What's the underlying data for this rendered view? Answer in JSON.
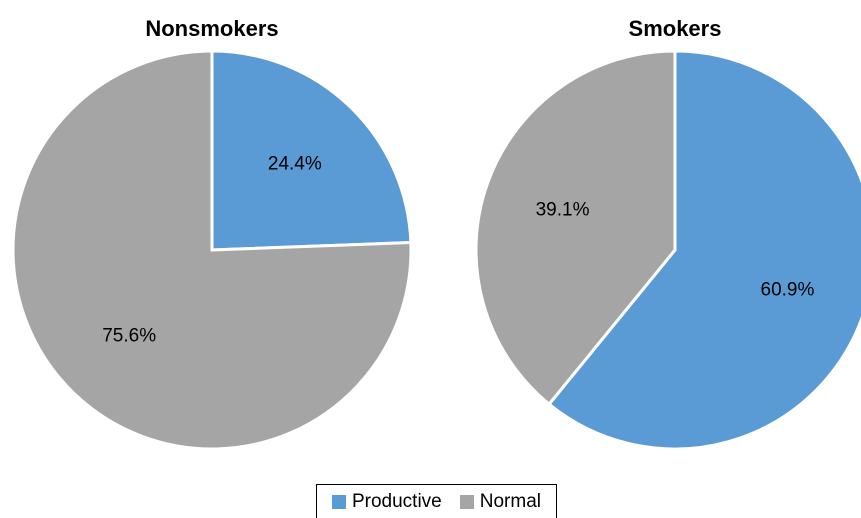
{
  "chart_data": [
    {
      "type": "pie",
      "title": "Nonsmokers",
      "slices": [
        {
          "name": "Productive",
          "value": 24.4,
          "label": "24.4%"
        },
        {
          "name": "Normal",
          "value": 75.6,
          "label": "75.6%"
        }
      ]
    },
    {
      "type": "pie",
      "title": "Smokers",
      "slices": [
        {
          "name": "Productive",
          "value": 60.9,
          "label": "60.9%"
        },
        {
          "name": "Normal",
          "value": 39.1,
          "label": "39.1%"
        }
      ]
    }
  ],
  "legend": {
    "placement": "bottom",
    "items": [
      {
        "name": "Productive",
        "color": "#5b9bd5"
      },
      {
        "name": "Normal",
        "color": "#a5a5a5"
      }
    ]
  }
}
